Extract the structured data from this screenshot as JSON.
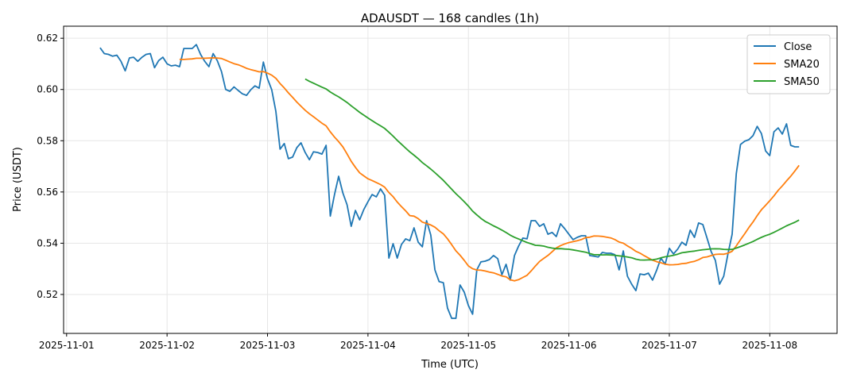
{
  "chart_data": {
    "type": "line",
    "title": "ADAUSDT — 168 candles (1h)",
    "xlabel": "Time (UTC)",
    "ylabel": "Price (USDT)",
    "x_start_day_offset_hours": 8,
    "x_interval_hours": 1,
    "xlim_days": [
      -0.03,
      7.67
    ],
    "ylim": [
      0.5048,
      0.6247
    ],
    "x_ticks": [
      {
        "day": 0,
        "label": "2025-11-01"
      },
      {
        "day": 1,
        "label": "2025-11-02"
      },
      {
        "day": 2,
        "label": "2025-11-03"
      },
      {
        "day": 3,
        "label": "2025-11-04"
      },
      {
        "day": 4,
        "label": "2025-11-05"
      },
      {
        "day": 5,
        "label": "2025-11-06"
      },
      {
        "day": 6,
        "label": "2025-11-07"
      },
      {
        "day": 7,
        "label": "2025-11-08"
      }
    ],
    "y_ticks": [
      {
        "value": 0.52,
        "label": "0.52"
      },
      {
        "value": 0.54,
        "label": "0.54"
      },
      {
        "value": 0.56,
        "label": "0.56"
      },
      {
        "value": 0.58,
        "label": "0.58"
      },
      {
        "value": 0.6,
        "label": "0.60"
      },
      {
        "value": 0.62,
        "label": "0.62"
      }
    ],
    "grid": true,
    "legend_position": "top-right",
    "series": [
      {
        "name": "Close",
        "color": "#1f77b4",
        "kind": "close"
      },
      {
        "name": "SMA20",
        "color": "#ff7f0e",
        "kind": "sma",
        "window": 20
      },
      {
        "name": "SMA50",
        "color": "#2ca02c",
        "kind": "sma",
        "window": 50
      }
    ],
    "close": [
      0.6163,
      0.614,
      0.6137,
      0.613,
      0.6134,
      0.611,
      0.6073,
      0.6123,
      0.6126,
      0.611,
      0.6126,
      0.6137,
      0.614,
      0.6085,
      0.6113,
      0.6126,
      0.61,
      0.6092,
      0.6095,
      0.6089,
      0.616,
      0.616,
      0.616,
      0.6175,
      0.6137,
      0.611,
      0.6089,
      0.614,
      0.6113,
      0.607,
      0.6,
      0.5993,
      0.601,
      0.5996,
      0.5983,
      0.5977,
      0.5999,
      0.6014,
      0.6005,
      0.6107,
      0.6042,
      0.5999,
      0.5915,
      0.5767,
      0.5789,
      0.573,
      0.5736,
      0.5773,
      0.5792,
      0.5754,
      0.5726,
      0.5757,
      0.5754,
      0.5748,
      0.5782,
      0.5506,
      0.559,
      0.5661,
      0.5596,
      0.555,
      0.5466,
      0.5528,
      0.5491,
      0.5531,
      0.5562,
      0.559,
      0.5581,
      0.5612,
      0.5587,
      0.5342,
      0.5398,
      0.5342,
      0.5395,
      0.5417,
      0.541,
      0.546,
      0.5404,
      0.5386,
      0.5488,
      0.5432,
      0.5296,
      0.525,
      0.5246,
      0.5147,
      0.5107,
      0.5107,
      0.5237,
      0.5209,
      0.5157,
      0.5123,
      0.5296,
      0.5327,
      0.533,
      0.5336,
      0.5352,
      0.534,
      0.5277,
      0.5318,
      0.5256,
      0.5352,
      0.5389,
      0.542,
      0.5417,
      0.5488,
      0.5488,
      0.5466,
      0.5476,
      0.5435,
      0.5442,
      0.5426,
      0.5476,
      0.5457,
      0.5435,
      0.5414,
      0.5423,
      0.5429,
      0.5429,
      0.5352,
      0.5349,
      0.5346,
      0.5364,
      0.5361,
      0.5361,
      0.5355,
      0.5296,
      0.537,
      0.5271,
      0.524,
      0.5215,
      0.528,
      0.5277,
      0.5283,
      0.5256,
      0.5296,
      0.5342,
      0.5318,
      0.538,
      0.5358,
      0.5377,
      0.5404,
      0.5392,
      0.5451,
      0.5423,
      0.5479,
      0.5473,
      0.542,
      0.5367,
      0.5333,
      0.524,
      0.5271,
      0.5358,
      0.5435,
      0.5671,
      0.5785,
      0.5798,
      0.5804,
      0.582,
      0.5856,
      0.5828,
      0.576,
      0.5742,
      0.5835,
      0.585,
      0.5826,
      0.5866,
      0.5782,
      0.5776,
      0.5776
    ]
  }
}
